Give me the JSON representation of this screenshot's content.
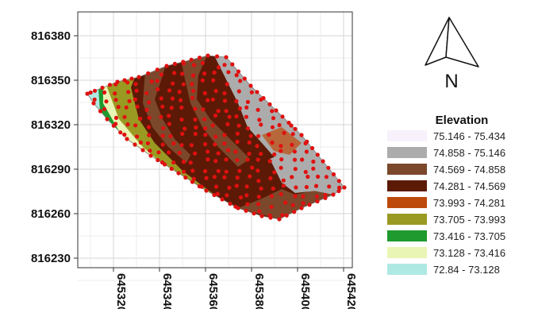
{
  "map": {
    "x_ticks": [
      "645320",
      "645340",
      "645360",
      "645380",
      "645400",
      "645420"
    ],
    "y_ticks": [
      "816380",
      "816350",
      "816320",
      "816290",
      "816260",
      "816230"
    ],
    "xlim": [
      645302,
      645424
    ],
    "ylim": [
      816224,
      816394
    ]
  },
  "north_arrow": {
    "letter": "N"
  },
  "legend": {
    "title": "Elevation",
    "items": [
      {
        "label": "75.146 - 75.434",
        "color": "#f6f1fa"
      },
      {
        "label": "74.858 - 75.146",
        "color": "#acacac"
      },
      {
        "label": "74.569 - 74.858",
        "color": "#7b482b"
      },
      {
        "label": "74.281 - 74.569",
        "color": "#5c1a06"
      },
      {
        "label": "73.993 - 74.281",
        "color": "#bd4a0a"
      },
      {
        "label": "73.705 - 73.993",
        "color": "#9a9a22"
      },
      {
        "label": "73.416 - 73.705",
        "color": "#1f9a2f"
      },
      {
        "label": "73.128 - 73.416",
        "color": "#e9f5b5"
      },
      {
        "label": "72.84 - 73.128",
        "color": "#aee9e3"
      }
    ]
  },
  "colors": {
    "sample_point": "#e01010",
    "grid": "#d4d4d4"
  }
}
